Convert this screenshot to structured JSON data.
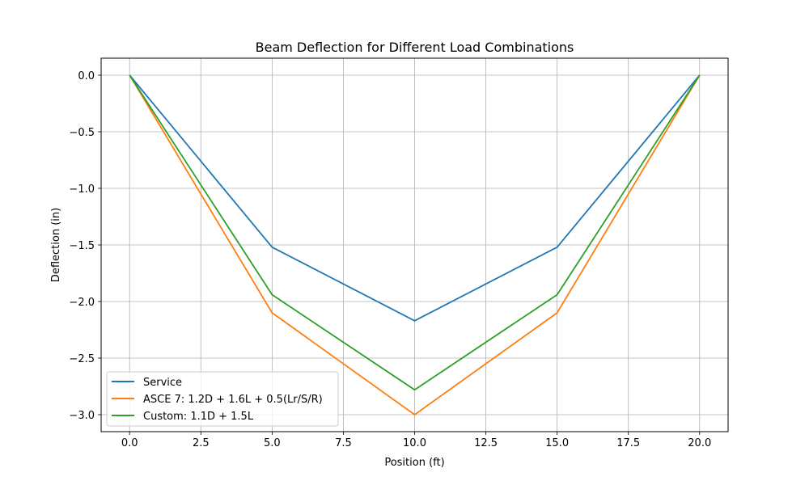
{
  "chart_data": {
    "type": "line",
    "title": "Beam Deflection for Different Load Combinations",
    "xlabel": "Position (ft)",
    "ylabel": "Deflection (in)",
    "x": [
      0,
      5,
      10,
      15,
      20
    ],
    "xlim": [
      -1,
      21
    ],
    "ylim": [
      -3.15,
      0.15
    ],
    "xticks": [
      0.0,
      2.5,
      5.0,
      7.5,
      10.0,
      12.5,
      15.0,
      17.5,
      20.0
    ],
    "xtick_labels": [
      "0.0",
      "2.5",
      "5.0",
      "7.5",
      "10.0",
      "12.5",
      "15.0",
      "17.5",
      "20.0"
    ],
    "yticks": [
      0.0,
      -0.5,
      -1.0,
      -1.5,
      -2.0,
      -2.5,
      -3.0
    ],
    "ytick_labels": [
      "0.0",
      "−0.5",
      "−1.0",
      "−1.5",
      "−2.0",
      "−2.5",
      "−3.0"
    ],
    "grid": true,
    "legend_position": "lower-left",
    "series": [
      {
        "name": "Service",
        "color": "#1f77b4",
        "values": [
          0.0,
          -1.52,
          -2.17,
          -1.52,
          0.0
        ]
      },
      {
        "name": "ASCE 7: 1.2D + 1.6L + 0.5(Lr/S/R)",
        "color": "#ff7f0e",
        "values": [
          0.0,
          -2.1,
          -3.0,
          -2.1,
          0.0
        ]
      },
      {
        "name": "Custom: 1.1D + 1.5L",
        "color": "#2ca02c",
        "values": [
          0.0,
          -1.94,
          -2.78,
          -1.94,
          0.0
        ]
      }
    ]
  }
}
